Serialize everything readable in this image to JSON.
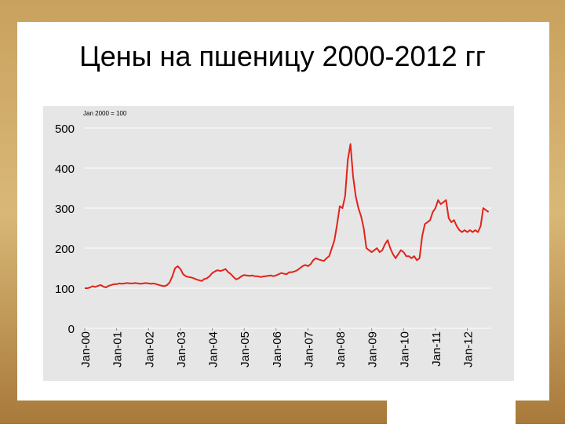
{
  "chart_data": {
    "type": "line",
    "title": "Цены на пшеницу 2000-2012 гг",
    "subtitle": "Jan 2000 = 100",
    "x": [
      "2000-01",
      "2000-02",
      "2000-03",
      "2000-04",
      "2000-05",
      "2000-06",
      "2000-07",
      "2000-08",
      "2000-09",
      "2000-10",
      "2000-11",
      "2000-12",
      "2001-01",
      "2001-02",
      "2001-03",
      "2001-04",
      "2001-05",
      "2001-06",
      "2001-07",
      "2001-08",
      "2001-09",
      "2001-10",
      "2001-11",
      "2001-12",
      "2002-01",
      "2002-02",
      "2002-03",
      "2002-04",
      "2002-05",
      "2002-06",
      "2002-07",
      "2002-08",
      "2002-09",
      "2002-10",
      "2002-11",
      "2002-12",
      "2003-01",
      "2003-02",
      "2003-03",
      "2003-04",
      "2003-05",
      "2003-06",
      "2003-07",
      "2003-08",
      "2003-09",
      "2003-10",
      "2003-11",
      "2003-12",
      "2004-01",
      "2004-02",
      "2004-03",
      "2004-04",
      "2004-05",
      "2004-06",
      "2004-07",
      "2004-08",
      "2004-09",
      "2004-10",
      "2004-11",
      "2004-12",
      "2005-01",
      "2005-02",
      "2005-03",
      "2005-04",
      "2005-05",
      "2005-06",
      "2005-07",
      "2005-08",
      "2005-09",
      "2005-10",
      "2005-11",
      "2005-12",
      "2006-01",
      "2006-02",
      "2006-03",
      "2006-04",
      "2006-05",
      "2006-06",
      "2006-07",
      "2006-08",
      "2006-09",
      "2006-10",
      "2006-11",
      "2006-12",
      "2007-01",
      "2007-02",
      "2007-03",
      "2007-04",
      "2007-05",
      "2007-06",
      "2007-07",
      "2007-08",
      "2007-09",
      "2007-10",
      "2007-11",
      "2007-12",
      "2008-01",
      "2008-02",
      "2008-03",
      "2008-04",
      "2008-05",
      "2008-06",
      "2008-07",
      "2008-08",
      "2008-09",
      "2008-10",
      "2008-11",
      "2008-12",
      "2009-01",
      "2009-02",
      "2009-03",
      "2009-04",
      "2009-05",
      "2009-06",
      "2009-07",
      "2009-08",
      "2009-09",
      "2009-10",
      "2009-11",
      "2009-12",
      "2010-01",
      "2010-02",
      "2010-03",
      "2010-04",
      "2010-05",
      "2010-06",
      "2010-07",
      "2010-08",
      "2010-09",
      "2010-10",
      "2010-11",
      "2010-12",
      "2011-01",
      "2011-02",
      "2011-03",
      "2011-04",
      "2011-05",
      "2011-06",
      "2011-07",
      "2011-08",
      "2011-09",
      "2011-10",
      "2011-11",
      "2011-12",
      "2012-01",
      "2012-02",
      "2012-03",
      "2012-04",
      "2012-05",
      "2012-06",
      "2012-07",
      "2012-08",
      "2012-09"
    ],
    "series": [
      {
        "color": "#e2231a",
        "values": [
          100,
          100,
          102,
          105,
          103,
          106,
          108,
          104,
          102,
          106,
          108,
          110,
          110,
          112,
          111,
          112,
          113,
          112,
          112,
          113,
          112,
          111,
          112,
          113,
          112,
          111,
          112,
          110,
          108,
          106,
          105,
          108,
          115,
          130,
          150,
          155,
          148,
          135,
          130,
          128,
          127,
          125,
          122,
          120,
          118,
          123,
          125,
          130,
          138,
          142,
          145,
          143,
          145,
          148,
          140,
          135,
          128,
          122,
          125,
          130,
          133,
          132,
          131,
          132,
          130,
          130,
          128,
          129,
          130,
          131,
          132,
          130,
          132,
          135,
          138,
          136,
          135,
          140,
          140,
          142,
          145,
          150,
          155,
          158,
          155,
          160,
          170,
          175,
          172,
          170,
          168,
          175,
          180,
          200,
          220,
          260,
          305,
          300,
          330,
          420,
          460,
          380,
          330,
          300,
          280,
          250,
          200,
          195,
          190,
          195,
          200,
          190,
          195,
          210,
          220,
          200,
          185,
          175,
          185,
          195,
          190,
          180,
          180,
          175,
          180,
          170,
          175,
          230,
          260,
          265,
          270,
          290,
          300,
          320,
          310,
          315,
          320,
          275,
          265,
          270,
          255,
          245,
          240,
          245,
          240,
          245,
          240,
          245,
          240,
          255,
          300,
          295,
          290
        ]
      }
    ],
    "xlim": [
      "2000-01",
      "2012-10"
    ],
    "xticks": [
      {
        "value": "2000-01",
        "label": "Jan-00"
      },
      {
        "value": "2001-01",
        "label": "Jan-01"
      },
      {
        "value": "2002-01",
        "label": "Jan-02"
      },
      {
        "value": "2003-01",
        "label": "Jan-03"
      },
      {
        "value": "2004-01",
        "label": "Jan-04"
      },
      {
        "value": "2005-01",
        "label": "Jan-05"
      },
      {
        "value": "2006-01",
        "label": "Jan-06"
      },
      {
        "value": "2007-01",
        "label": "Jan-07"
      },
      {
        "value": "2008-01",
        "label": "Jan-08"
      },
      {
        "value": "2009-01",
        "label": "Jan-09"
      },
      {
        "value": "2010-01",
        "label": "Jan-10"
      },
      {
        "value": "2011-01",
        "label": "Jan-11"
      },
      {
        "value": "2012-01",
        "label": "Jan-12"
      }
    ],
    "ylim": [
      0,
      500
    ],
    "yticks": [
      0,
      100,
      200,
      300,
      400,
      500
    ],
    "grid": true
  }
}
